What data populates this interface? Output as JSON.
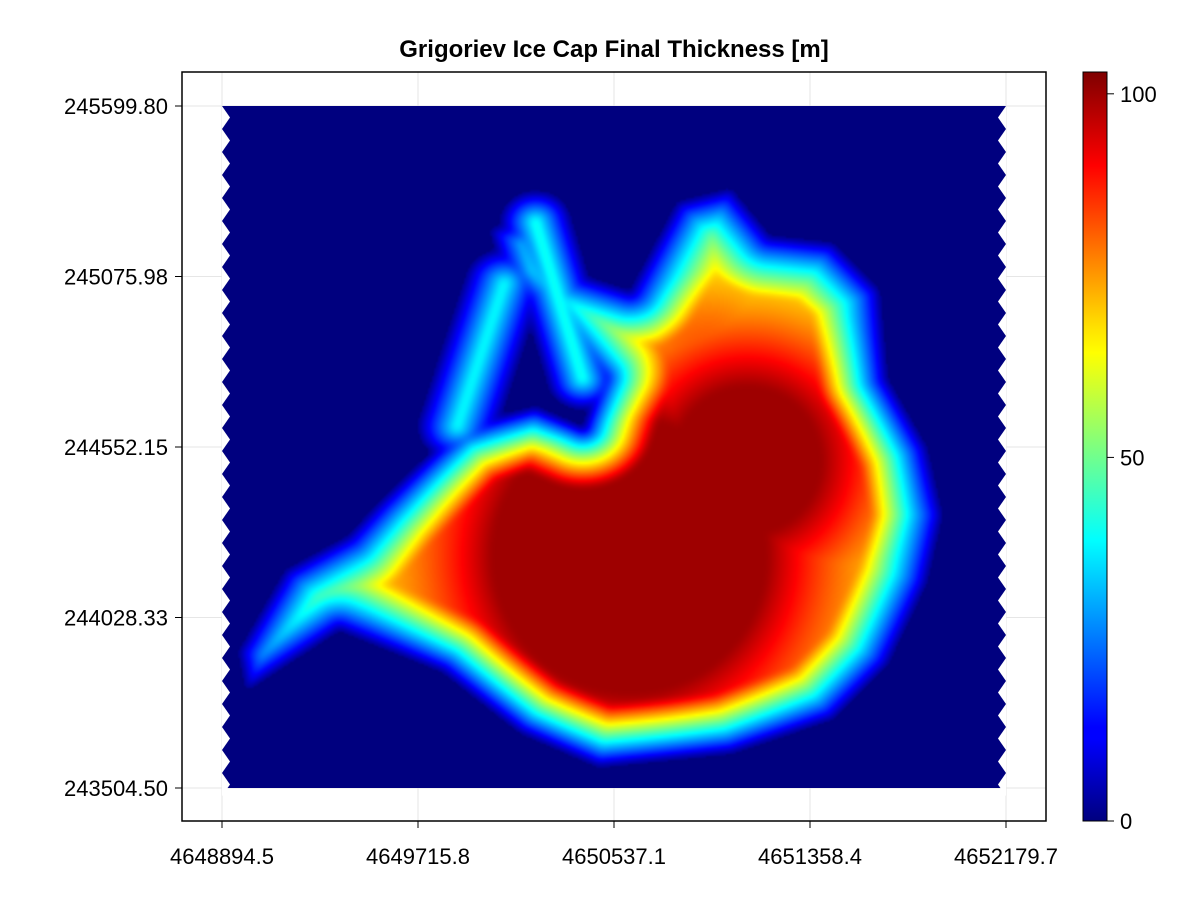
{
  "chart_data": {
    "type": "heatmap",
    "title": "Grigoriev Ice Cap Final Thickness [m]",
    "xlabel": "",
    "ylabel": "",
    "x_ticks": [
      "4648894.5",
      "4649715.8",
      "4650537.1",
      "4651358.4",
      "4652179.7"
    ],
    "y_ticks": [
      "245599.80",
      "245075.98",
      "244552.15",
      "244028.33",
      "243504.50"
    ],
    "xlim": [
      4648894.5,
      4652179.7
    ],
    "ylim": [
      243504.5,
      245599.8
    ],
    "colorbar": {
      "label": "",
      "range": [
        0,
        103
      ],
      "ticks": [
        "0",
        "50",
        "100"
      ],
      "tick_values": [
        0,
        50,
        100
      ],
      "colormap": "jet"
    },
    "grid": true,
    "description_of_field": "Thickness is 0 outside the ice cap; maximum about 103 m near x=4650600, y=244150.",
    "peaks": [
      {
        "x": 4650600,
        "y": 244150,
        "value": 103
      },
      {
        "x": 4651150,
        "y": 244480,
        "value": 90
      },
      {
        "x": 4649950,
        "y": 244300,
        "value": 80
      }
    ]
  }
}
